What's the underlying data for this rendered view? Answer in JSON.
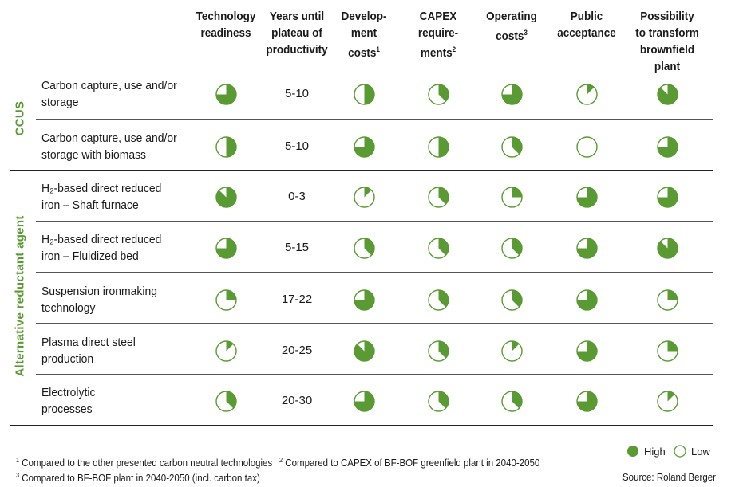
{
  "chart_data": {
    "type": "table",
    "columns": [
      {
        "key": "technology_readiness",
        "label": "Technology readiness"
      },
      {
        "key": "years",
        "label": "Years until plateau of productivity"
      },
      {
        "key": "development_costs",
        "label": "Develop-ment costs",
        "footnote": "1"
      },
      {
        "key": "capex",
        "label": "CAPEX require-ments",
        "footnote": "2"
      },
      {
        "key": "operating_costs",
        "label": "Operating costs",
        "footnote": "3"
      },
      {
        "key": "public_acceptance",
        "label": "Public acceptance"
      },
      {
        "key": "brownfield",
        "label": "Possibility to transform brownfield plant"
      }
    ],
    "groups": [
      {
        "label": "CCUS",
        "rows": [
          0,
          1
        ]
      },
      {
        "label": "Alternative reductant agent",
        "rows": [
          2,
          3,
          4,
          5,
          6
        ]
      }
    ],
    "rows": [
      {
        "label_line1": "Carbon capture, use and/or",
        "label_line2": "storage",
        "years": "5-10",
        "ratings": {
          "technology_readiness": 0.75,
          "development_costs": 0.5,
          "capex": 0.375,
          "operating_costs": 0.75,
          "public_acceptance": 0.125,
          "brownfield": 0.875
        }
      },
      {
        "label_line1": "Carbon capture, use and/or",
        "label_line2": "storage with biomass",
        "years": "5-10",
        "ratings": {
          "technology_readiness": 0.5,
          "development_costs": 0.75,
          "capex": 0.5,
          "operating_costs": 0.375,
          "public_acceptance": 0.0,
          "brownfield": 0.75
        }
      },
      {
        "label_line1": "H₂-based direct reduced",
        "label_line2": "iron – Shaft furnace",
        "years": "0-3",
        "ratings": {
          "technology_readiness": 0.875,
          "development_costs": 0.125,
          "capex": 0.375,
          "operating_costs": 0.25,
          "public_acceptance": 0.75,
          "brownfield": 0.75
        }
      },
      {
        "label_line1": "H₂-based direct reduced",
        "label_line2": "iron – Fluidized bed",
        "years": "5-15",
        "ratings": {
          "technology_readiness": 0.75,
          "development_costs": 0.375,
          "capex": 0.375,
          "operating_costs": 0.375,
          "public_acceptance": 0.75,
          "brownfield": 0.875
        }
      },
      {
        "label_line1": "Suspension ironmaking",
        "label_line2": "technology",
        "years": "17-22",
        "ratings": {
          "technology_readiness": 0.25,
          "development_costs": 0.75,
          "capex": 0.375,
          "operating_costs": 0.375,
          "public_acceptance": 0.75,
          "brownfield": 0.25
        }
      },
      {
        "label_line1": "Plasma direct steel",
        "label_line2": "production",
        "years": "20-25",
        "ratings": {
          "technology_readiness": 0.125,
          "development_costs": 0.875,
          "capex": 0.375,
          "operating_costs": 0.125,
          "public_acceptance": 0.75,
          "brownfield": 0.25
        }
      },
      {
        "label_line1": "Electrolytic",
        "label_line2": "processes",
        "years": "20-30",
        "ratings": {
          "technology_readiness": 0.375,
          "development_costs": 0.75,
          "capex": 0.375,
          "operating_costs": 0.375,
          "public_acceptance": 0.75,
          "brownfield": 0.125
        }
      }
    ],
    "footnotes": [
      {
        "mark": "1",
        "text": "Compared to the other presented carbon neutral technologies"
      },
      {
        "mark": "2",
        "text": "Compared to CAPEX of BF-BOF greenfield plant in 2040-2050"
      },
      {
        "mark": "3",
        "text": "Compared to BF-BOF plant in 2040-2050 (incl. carbon tax)"
      }
    ],
    "legend": {
      "high": "High",
      "low": "Low"
    },
    "source": "Source: Roland Berger",
    "colors": {
      "fill": "#5a9a32",
      "stroke": "#5a9a32",
      "text": "#1a1a1a",
      "group": "#5a9a32"
    }
  }
}
